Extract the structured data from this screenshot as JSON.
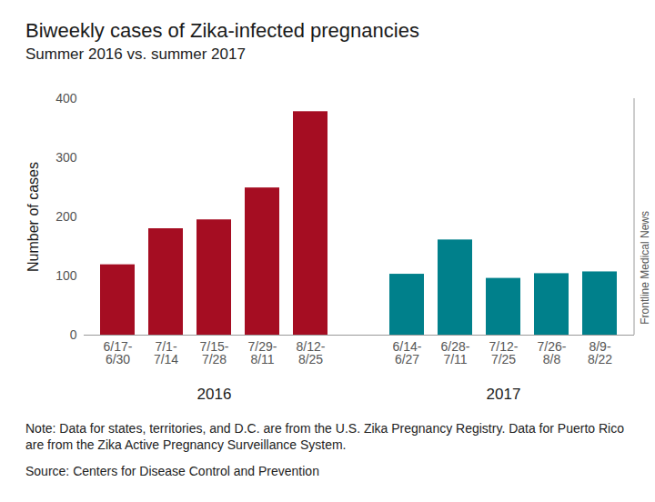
{
  "chart_data": {
    "type": "bar",
    "title": "Biweekly cases of Zika-infected pregnancies",
    "subtitle": "Summer 2016 vs. summer 2017",
    "y_label": "Number of cases",
    "series": [
      {
        "name": "2016",
        "color": "#a50d22",
        "categories": [
          "6/17-6/30",
          "7/1-7/14",
          "7/15-7/28",
          "7/29-8/11",
          "8/12-8/25"
        ],
        "values": [
          119,
          180,
          195,
          249,
          378
        ]
      },
      {
        "name": "2017",
        "color": "#00808b",
        "categories": [
          "6/14-6/27",
          "6/28-7/11",
          "7/12-7/25",
          "7/26-8/8",
          "8/9-8/22"
        ],
        "values": [
          103,
          161,
          96,
          104,
          107
        ]
      }
    ],
    "ylim": [
      0,
      400
    ],
    "yticks": [
      0,
      100,
      200,
      300,
      400
    ],
    "grid": false,
    "note": "Note: Data for states, territories, and D.C. are from the U.S. Zika Pregnancy Registry. Data for Puerto Rico are from the Zika Active Pregnancy Surveillance System.",
    "source": "Source: Centers for Disease Control and Prevention",
    "credit": "Frontline Medical News"
  }
}
